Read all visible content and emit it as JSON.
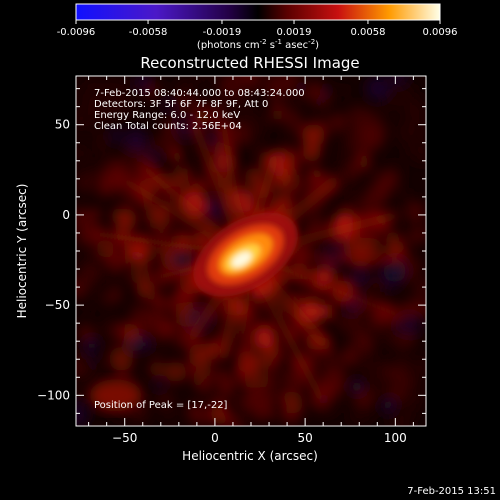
{
  "chart_data": {
    "type": "heatmap",
    "title": "Reconstructed RHESSI Image",
    "xlabel": "Heliocentric X (arcsec)",
    "ylabel": "Heliocentric Y (arcsec)",
    "xlim": [
      -77,
      117
    ],
    "ylim": [
      -117,
      77
    ],
    "x_ticks": [
      -50,
      0,
      50,
      100
    ],
    "y_ticks": [
      -100,
      -50,
      0,
      50
    ],
    "colorbar": {
      "ticks": [
        "-0.0096",
        "-0.0058",
        "-0.0019",
        "0.0019",
        "0.0058",
        "0.0096"
      ],
      "range": [
        -0.0096,
        0.0096
      ],
      "unit_label": "(photons cm",
      "unit_exp1": "-2",
      "unit_mid": " s",
      "unit_exp2": "-1",
      "unit_mid2": " asec",
      "unit_exp3": "-2",
      "unit_end": ")"
    },
    "peak": {
      "x": 17,
      "y": -22
    },
    "annotations": [
      " 7-Feb-2015 08:40:44.000 to 08:43:24.000",
      "Detectors: 3F 5F 6F 7F 8F 9F, Att 0",
      "Energy Range: 6.0 - 12.0 keV",
      "Clean    Total counts: 2.56E+04"
    ],
    "peak_label": "Position of Peak = [17,-22]",
    "timestamp": "7-Feb-2015 13:51"
  }
}
